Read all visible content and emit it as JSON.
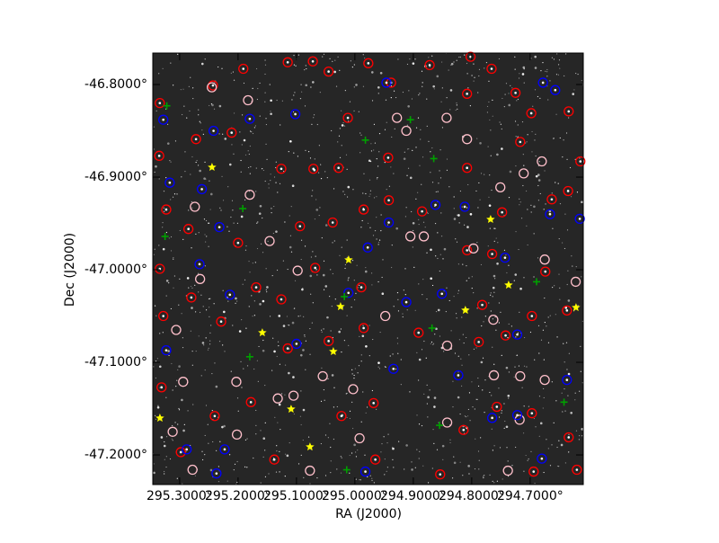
{
  "chart_data": {
    "type": "scatter",
    "xlabel": "RA (J2000)",
    "ylabel": "Dec (J2000)",
    "xlim": [
      295.346,
      294.609
    ],
    "ylim": [
      -47.232,
      -46.766
    ],
    "xticks": [
      {
        "value": 295.3,
        "label": "295.3000°"
      },
      {
        "value": 295.2,
        "label": "295.2000°"
      },
      {
        "value": 295.1,
        "label": "295.1000°"
      },
      {
        "value": 295.0,
        "label": "295.0000°"
      },
      {
        "value": 294.9,
        "label": "294.9000°"
      },
      {
        "value": 294.8,
        "label": "294.8000°"
      },
      {
        "value": 294.7,
        "label": "294.7000°"
      }
    ],
    "yticks": [
      {
        "value": -46.8,
        "label": "-46.8000°"
      },
      {
        "value": -46.9,
        "label": "-46.9000°"
      },
      {
        "value": -47.0,
        "label": "-47.0000°"
      },
      {
        "value": -47.1,
        "label": "-47.1000°"
      },
      {
        "value": -47.2,
        "label": "-47.2000°"
      }
    ],
    "series": [
      {
        "color": "#ff0000",
        "marker": "ring-dot",
        "x": [
          295.334,
          295.243,
          295.191,
          295.115,
          295.072,
          295.045,
          294.977,
          294.938,
          294.872,
          294.802,
          294.766,
          294.725,
          294.698,
          294.634,
          294.614,
          295.335,
          295.272,
          295.211,
          295.126,
          295.071,
          295.028,
          294.943,
          294.808,
          294.717,
          294.663,
          294.635,
          295.323,
          295.285,
          295.2,
          295.094,
          295.038,
          294.985,
          294.885,
          294.748,
          294.808,
          294.765,
          294.674,
          295.334,
          295.28,
          295.169,
          295.126,
          295.068,
          294.989,
          294.782,
          294.697,
          294.637,
          295.328,
          295.229,
          295.115,
          295.045,
          294.985,
          294.891,
          294.788,
          294.742,
          295.331,
          295.24,
          295.178,
          295.023,
          294.968,
          294.814,
          294.757,
          294.697,
          294.634,
          295.298,
          295.138,
          294.965,
          294.854,
          294.694,
          294.62,
          294.808,
          295.012,
          294.942
        ],
        "y": [
          -46.82,
          -46.801,
          -46.783,
          -46.776,
          -46.775,
          -46.786,
          -46.777,
          -46.798,
          -46.779,
          -46.77,
          -46.783,
          -46.809,
          -46.831,
          -46.829,
          -46.883,
          -46.877,
          -46.859,
          -46.852,
          -46.891,
          -46.891,
          -46.89,
          -46.879,
          -46.89,
          -46.862,
          -46.924,
          -46.915,
          -46.935,
          -46.956,
          -46.971,
          -46.953,
          -46.949,
          -46.935,
          -46.937,
          -46.938,
          -46.979,
          -46.983,
          -47.002,
          -46.999,
          -47.03,
          -47.019,
          -47.032,
          -46.998,
          -47.019,
          -47.038,
          -47.05,
          -47.044,
          -47.05,
          -47.056,
          -47.085,
          -47.077,
          -47.063,
          -47.068,
          -47.078,
          -47.071,
          -47.127,
          -47.158,
          -47.143,
          -47.158,
          -47.144,
          -47.173,
          -47.148,
          -47.155,
          -47.181,
          -47.197,
          -47.205,
          -47.205,
          -47.221,
          -47.218,
          -47.216,
          -46.81,
          -46.836,
          -46.925
        ]
      },
      {
        "color": "#ffc0cb",
        "marker": "ring",
        "x": [
          295.245,
          295.183,
          294.928,
          294.843,
          294.808,
          294.912,
          294.905,
          294.882,
          294.797,
          295.18,
          295.274,
          295.146,
          295.098,
          294.948,
          294.763,
          295.265,
          295.306,
          295.294,
          295.203,
          295.055,
          295.003,
          295.105,
          295.132,
          294.842,
          294.762,
          294.717,
          294.675,
          294.842,
          294.718,
          294.738,
          295.077,
          295.278,
          295.202,
          295.312,
          294.992,
          294.622,
          294.675,
          294.751,
          294.68,
          294.711
        ],
        "y": [
          -46.803,
          -46.817,
          -46.836,
          -46.836,
          -46.859,
          -46.85,
          -46.964,
          -46.964,
          -46.977,
          -46.919,
          -46.932,
          -46.969,
          -47.001,
          -47.05,
          -47.054,
          -47.01,
          -47.065,
          -47.121,
          -47.121,
          -47.115,
          -47.129,
          -47.136,
          -47.139,
          -47.082,
          -47.114,
          -47.115,
          -47.119,
          -47.165,
          -47.162,
          -47.217,
          -47.217,
          -47.216,
          -47.178,
          -47.175,
          -47.182,
          -47.013,
          -46.989,
          -46.911,
          -46.883,
          -46.896
        ]
      },
      {
        "color": "#0000ff",
        "marker": "ring-dot",
        "x": [
          295.328,
          295.242,
          295.18,
          295.102,
          294.946,
          294.678,
          294.657,
          294.862,
          294.812,
          295.317,
          295.262,
          294.942,
          295.232,
          294.978,
          294.743,
          295.266,
          295.214,
          295.011,
          294.912,
          294.851,
          294.666,
          294.722,
          294.823,
          294.934,
          294.637,
          294.765,
          294.722,
          295.223,
          295.237,
          295.288,
          294.982,
          294.68,
          294.615,
          295.323,
          295.1
        ],
        "y": [
          -46.838,
          -46.85,
          -46.837,
          -46.832,
          -46.798,
          -46.798,
          -46.806,
          -46.93,
          -46.932,
          -46.906,
          -46.913,
          -46.949,
          -46.954,
          -46.976,
          -46.987,
          -46.994,
          -47.027,
          -47.025,
          -47.035,
          -47.026,
          -46.94,
          -47.07,
          -47.114,
          -47.107,
          -47.119,
          -47.16,
          -47.157,
          -47.194,
          -47.22,
          -47.194,
          -47.218,
          -47.204,
          -46.945,
          -47.087,
          -47.08
        ]
      },
      {
        "color": "#00a000",
        "marker": "cross",
        "x": [
          295.322,
          294.905,
          294.865,
          294.982,
          295.192,
          295.325,
          295.018,
          294.868,
          295.18,
          294.855,
          295.014,
          294.689,
          294.642
        ],
        "y": [
          -46.823,
          -46.838,
          -46.88,
          -46.86,
          -46.934,
          -46.964,
          -47.029,
          -47.063,
          -47.094,
          -47.168,
          -47.216,
          -47.013,
          -47.143
        ]
      },
      {
        "color": "#ffff00",
        "marker": "star",
        "x": [
          295.2446,
          294.7677,
          295.0108,
          294.7369,
          295.0246,
          294.8108,
          295.1585,
          294.6215,
          295.0369,
          295.1092,
          295.3338,
          295.0769
        ],
        "y": [
          -46.8893,
          -46.9456,
          -46.9893,
          -47.0165,
          -47.0398,
          -47.0437,
          -47.068,
          -47.0408,
          -47.0883,
          -47.1505,
          -47.1602,
          -47.1913
        ]
      }
    ]
  }
}
